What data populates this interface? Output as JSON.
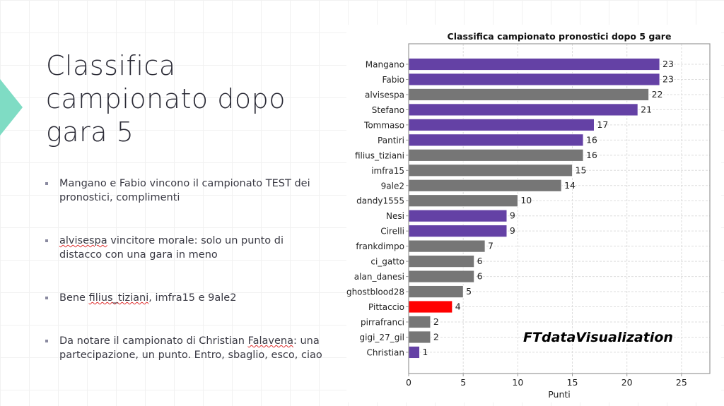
{
  "slide": {
    "title_lines": [
      "Classifica",
      "campionato dopo",
      "gara 5"
    ],
    "bullets": [
      {
        "parts": [
          "Mangano e Fabio vincono il campionato TEST dei pronostici, complimenti"
        ]
      },
      {
        "spell": "alvisespa",
        "rest": " vincitore morale: solo un punto di distacco con una gara in meno"
      },
      {
        "pre": "Bene ",
        "spell": "filius_tiziani",
        "rest": ", imfra15 e 9ale2"
      },
      {
        "pre": "Da notare il campionato di Christian ",
        "spell": "Falavena",
        "rest": ": una partecipazione, un punto. Entro, sbaglio, esco, ciao"
      }
    ],
    "accent_color": "#7fdcc4"
  },
  "chart_data": {
    "type": "bar",
    "orientation": "horizontal",
    "title": "Classifica campionato pronostici dopo 5 gare",
    "xlabel": "Punti",
    "ylabel": "",
    "xlim": [
      0,
      27.6
    ],
    "xticks": [
      0,
      5,
      10,
      15,
      20,
      25
    ],
    "grid": true,
    "watermark": "FTdataVisualization",
    "categories": [
      "Mangano",
      "Fabio",
      "alvisespa",
      "Stefano",
      "Tommaso",
      "Pantiri",
      "filius_tiziani",
      "imfra15",
      "9ale2",
      "dandy1555",
      "Nesi",
      "Cirelli",
      "frankdimpo",
      "ci_gatto",
      "alan_danesi",
      "ghostblood28",
      "Pittaccio",
      "pirrafranci",
      "gigi_27_gil",
      "Christian"
    ],
    "values": [
      23,
      23,
      22,
      21,
      17,
      16,
      16,
      15,
      14,
      10,
      9,
      9,
      7,
      6,
      6,
      5,
      4,
      2,
      2,
      1
    ],
    "colors": [
      "#6441a5",
      "#6441a5",
      "#767676",
      "#6441a5",
      "#6441a5",
      "#6441a5",
      "#767676",
      "#767676",
      "#767676",
      "#767676",
      "#6441a5",
      "#6441a5",
      "#767676",
      "#767676",
      "#767676",
      "#767676",
      "#ff0000",
      "#767676",
      "#767676",
      "#6441a5"
    ]
  }
}
